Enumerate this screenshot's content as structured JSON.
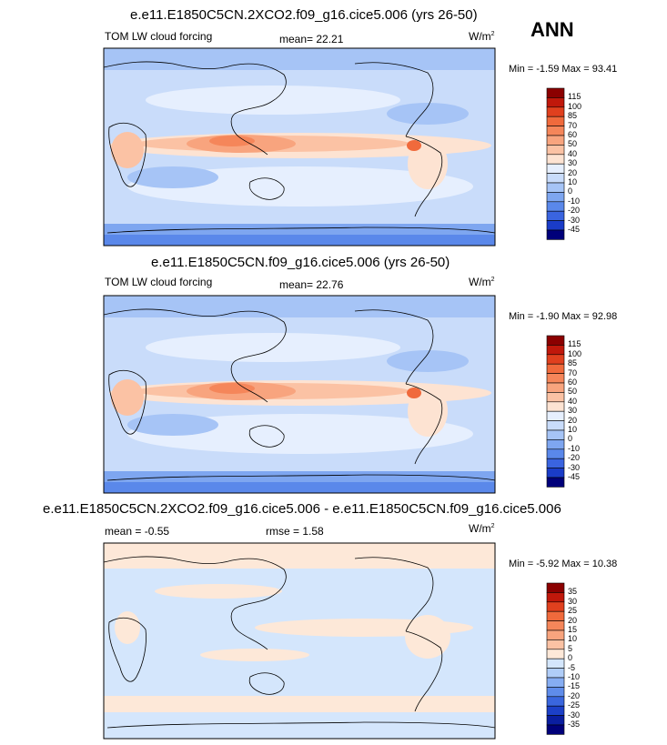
{
  "season": "ANN",
  "units": {
    "base": "W/m",
    "exp": "2"
  },
  "minmax_prefix": "Min = ",
  "minmax_mid": " Max = ",
  "panels": [
    {
      "title": "e.e11.E1850C5CN.2XCO2.f09_g16.cice5.006 (yrs 26-50)",
      "variable": "TOM LW cloud forcing",
      "stat_label": "mean= ",
      "stat_value": "22.21",
      "min": "-1.59",
      "max": "93.41",
      "colorbar": {
        "levels": [
          "115",
          "100",
          "85",
          "70",
          "60",
          "50",
          "40",
          "30",
          "20",
          "10",
          "0",
          "-10",
          "-20",
          "-30",
          "-45"
        ],
        "colors": [
          "#8b0000",
          "#c0180b",
          "#e0401e",
          "#f06a3c",
          "#f5865a",
          "#f8a47e",
          "#fbc2a4",
          "#fde3d2",
          "#e6effe",
          "#c9dcfa",
          "#a6c4f6",
          "#7ea6f0",
          "#5a88ea",
          "#3a64e0",
          "#1a3cc8",
          "#00007a"
        ]
      }
    },
    {
      "title": "e.e11.E1850C5CN.f09_g16.cice5.006 (yrs 26-50)",
      "variable": "TOM LW cloud forcing",
      "stat_label": "mean= ",
      "stat_value": "22.76",
      "min": "-1.90",
      "max": "92.98",
      "colorbar": {
        "levels": [
          "115",
          "100",
          "85",
          "70",
          "60",
          "50",
          "40",
          "30",
          "20",
          "10",
          "0",
          "-10",
          "-20",
          "-30",
          "-45"
        ],
        "colors": [
          "#8b0000",
          "#c0180b",
          "#e0401e",
          "#f06a3c",
          "#f5865a",
          "#f8a47e",
          "#fbc2a4",
          "#fde3d2",
          "#e6effe",
          "#c9dcfa",
          "#a6c4f6",
          "#7ea6f0",
          "#5a88ea",
          "#3a64e0",
          "#1a3cc8",
          "#00007a"
        ]
      }
    },
    {
      "title": "e.e11.E1850C5CN.2XCO2.f09_g16.cice5.006 - e.e11.E1850C5CN.f09_g16.cice5.006",
      "mean_label": "mean = ",
      "mean_value": "-0.55",
      "stat_label": "rmse = ",
      "stat_value": "1.58",
      "min": "-5.92",
      "max": "10.38",
      "colorbar": {
        "levels": [
          "35",
          "30",
          "25",
          "20",
          "15",
          "10",
          "5",
          "0",
          "-5",
          "-10",
          "-15",
          "-20",
          "-25",
          "-30",
          "-35"
        ],
        "colors": [
          "#8b0000",
          "#c0180b",
          "#e0401e",
          "#f06a3c",
          "#f5865a",
          "#f8a47e",
          "#fbc2a4",
          "#fde8d8",
          "#d4e6fc",
          "#b0cdf8",
          "#86adf2",
          "#5f8cea",
          "#3a66de",
          "#1c40c8",
          "#0a1ea0",
          "#00007a"
        ]
      }
    }
  ]
}
